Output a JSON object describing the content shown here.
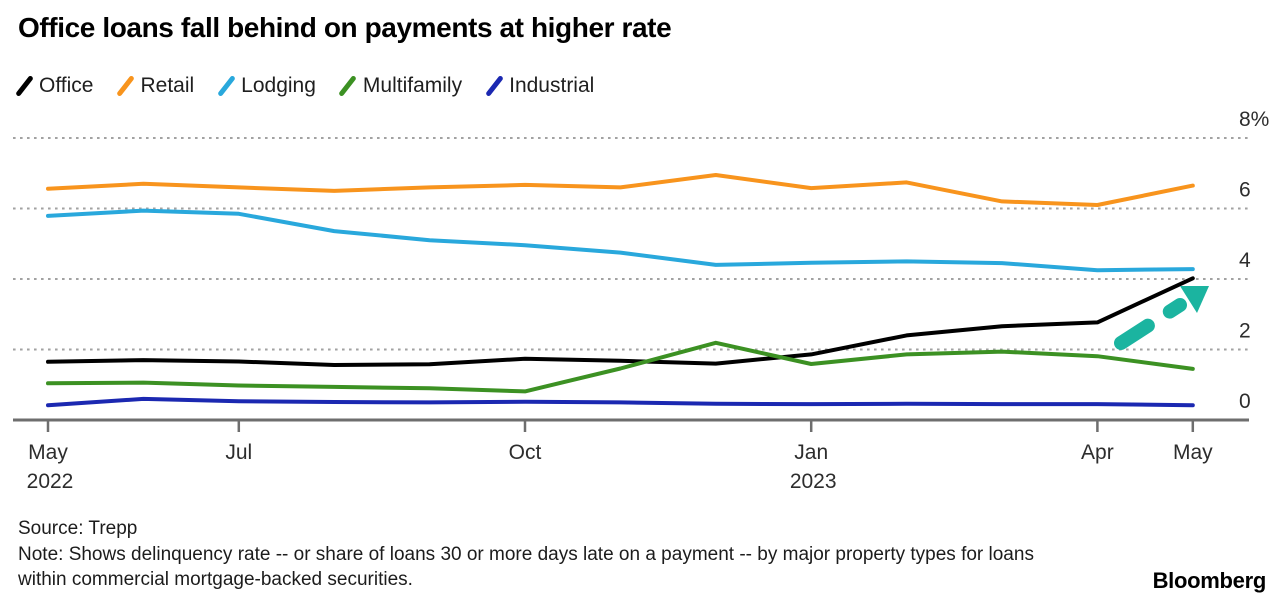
{
  "chart_data": {
    "type": "line",
    "title": "Office loans fall behind on payments at higher rate",
    "x": [
      "May 2022",
      "Jun 2022",
      "Jul 2022",
      "Aug 2022",
      "Sep 2022",
      "Oct 2022",
      "Nov 2022",
      "Dec 2022",
      "Jan 2023",
      "Feb 2023",
      "Mar 2023",
      "Apr 2023",
      "May 2023"
    ],
    "series": [
      {
        "name": "Office",
        "color": "#000000",
        "values": [
          1.65,
          1.7,
          1.66,
          1.56,
          1.58,
          1.74,
          1.68,
          1.6,
          1.86,
          2.4,
          2.66,
          2.77,
          4.02
        ]
      },
      {
        "name": "Retail",
        "color": "#F8941D",
        "values": [
          6.56,
          6.7,
          6.6,
          6.5,
          6.6,
          6.67,
          6.6,
          6.95,
          6.58,
          6.74,
          6.2,
          6.1,
          6.65
        ]
      },
      {
        "name": "Lodging",
        "color": "#29A8DC",
        "values": [
          5.79,
          5.94,
          5.85,
          5.36,
          5.1,
          4.96,
          4.75,
          4.4,
          4.46,
          4.5,
          4.45,
          4.25,
          4.28
        ]
      },
      {
        "name": "Multifamily",
        "color": "#3C9123",
        "values": [
          1.04,
          1.06,
          0.98,
          0.94,
          0.9,
          0.81,
          1.46,
          2.19,
          1.59,
          1.86,
          1.94,
          1.81,
          1.45
        ]
      },
      {
        "name": "Industrial",
        "color": "#1B28B1",
        "values": [
          0.42,
          0.6,
          0.53,
          0.51,
          0.5,
          0.52,
          0.5,
          0.46,
          0.45,
          0.46,
          0.45,
          0.45,
          0.42
        ]
      }
    ],
    "ylim": [
      0,
      8
    ],
    "ylabel": "",
    "xlabel": "",
    "yticks": [
      {
        "v": 8,
        "label": "8%"
      },
      {
        "v": 6,
        "label": "6"
      },
      {
        "v": 4,
        "label": "4"
      },
      {
        "v": 2,
        "label": "2"
      },
      {
        "v": 0,
        "label": "0"
      }
    ],
    "xticks": [
      {
        "i": 0,
        "label": "May",
        "sublabel": "2022"
      },
      {
        "i": 2,
        "label": "Jul"
      },
      {
        "i": 5,
        "label": "Oct"
      },
      {
        "i": 8,
        "label": "Jan",
        "sublabel": "2023"
      },
      {
        "i": 11,
        "label": "Apr"
      },
      {
        "i": 12,
        "label": "May"
      }
    ],
    "grid": "horizontal-dotted",
    "legend_position": "top",
    "annotation": {
      "type": "arrow-up-right",
      "color": "#1BB4A0",
      "target": "Office line surge in May 2023"
    }
  },
  "footer": {
    "source": "Source: Trepp",
    "note": "Note: Shows delinquency rate -- or share of loans 30 or more days late on a payment -- by major property types for loans within commercial mortgage-backed securities.",
    "brand": "Bloomberg"
  }
}
